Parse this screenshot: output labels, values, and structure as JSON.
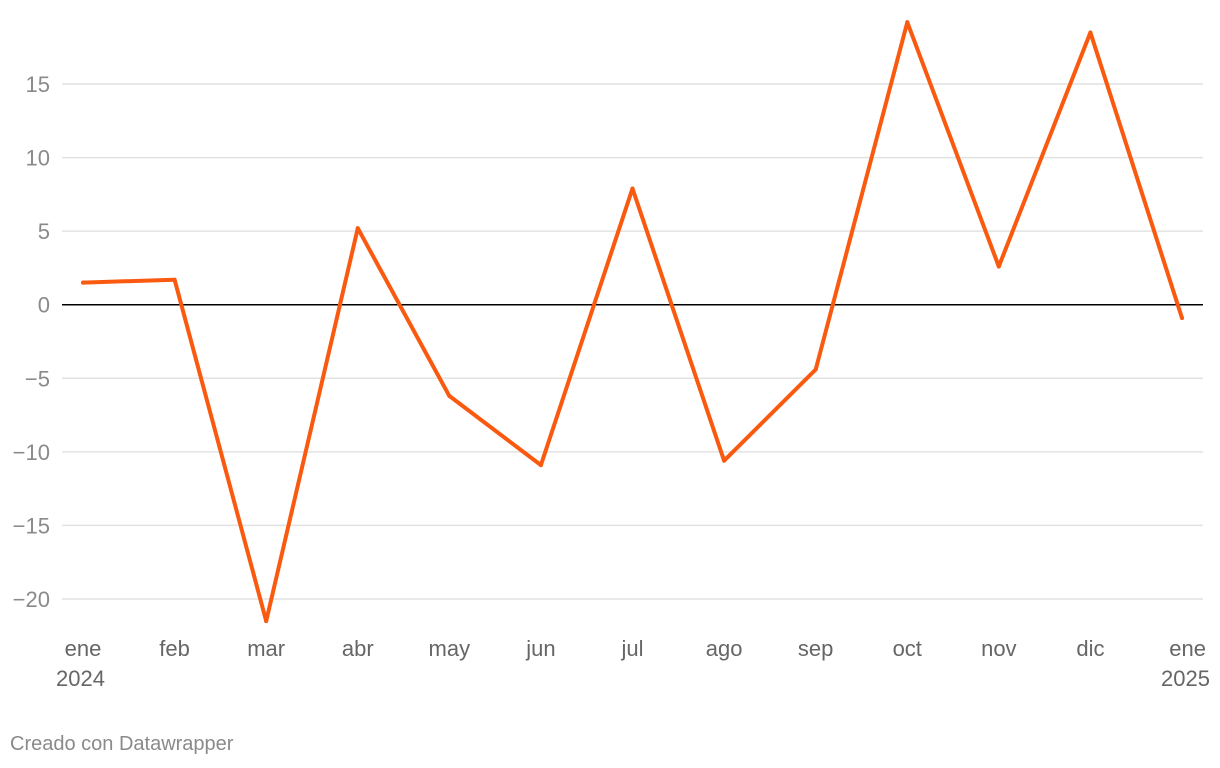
{
  "colors": {
    "series": "#fa5a0f",
    "grid": "#e2e2e2",
    "zero_line": "#000000",
    "tick_text": "#8a8a8a"
  },
  "credit": "Creado con Datawrapper",
  "chart_data": {
    "type": "line",
    "title": "",
    "xlabel": "",
    "ylabel": "",
    "ylim": [
      -22,
      19.5
    ],
    "grid": true,
    "legend": "none",
    "yticks": [
      {
        "value": 15,
        "label": "15"
      },
      {
        "value": 10,
        "label": "10"
      },
      {
        "value": 5,
        "label": "5"
      },
      {
        "value": 0,
        "label": "0"
      },
      {
        "value": -5,
        "label": "−5"
      },
      {
        "value": -10,
        "label": "−10"
      },
      {
        "value": -15,
        "label": "−15"
      },
      {
        "value": -20,
        "label": "−20"
      }
    ],
    "xticks": [
      {
        "label": "ene",
        "sublabel": "2024"
      },
      {
        "label": "feb",
        "sublabel": ""
      },
      {
        "label": "mar",
        "sublabel": ""
      },
      {
        "label": "abr",
        "sublabel": ""
      },
      {
        "label": "may",
        "sublabel": ""
      },
      {
        "label": "jun",
        "sublabel": ""
      },
      {
        "label": "jul",
        "sublabel": ""
      },
      {
        "label": "ago",
        "sublabel": ""
      },
      {
        "label": "sep",
        "sublabel": ""
      },
      {
        "label": "oct",
        "sublabel": ""
      },
      {
        "label": "nov",
        "sublabel": ""
      },
      {
        "label": "dic",
        "sublabel": ""
      },
      {
        "label": "ene",
        "sublabel": "2025"
      }
    ],
    "x": [
      "2024-01",
      "2024-02",
      "2024-03",
      "2024-04",
      "2024-05",
      "2024-06",
      "2024-07",
      "2024-08",
      "2024-09",
      "2024-10",
      "2024-11",
      "2024-12",
      "2025-01"
    ],
    "series": [
      {
        "values": [
          1.5,
          1.7,
          -21.5,
          5.2,
          -6.2,
          -10.9,
          7.9,
          -10.6,
          -4.4,
          19.2,
          2.6,
          18.5,
          -0.9
        ]
      }
    ]
  }
}
